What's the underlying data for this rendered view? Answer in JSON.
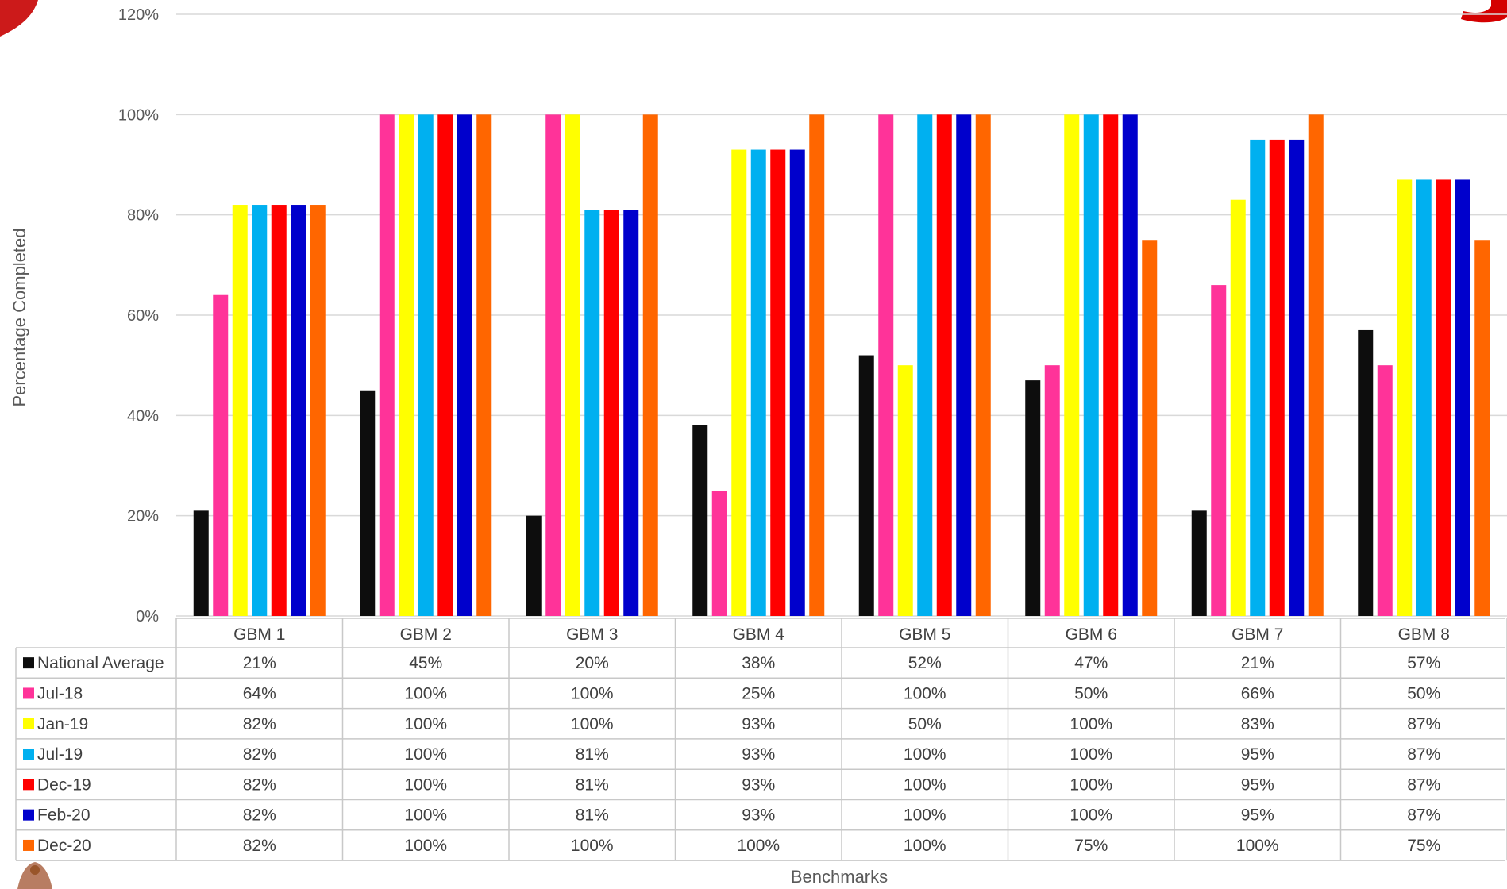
{
  "chart_data": {
    "type": "bar",
    "ylabel": "Percentage Completed",
    "xlabel": "Benchmarks",
    "ylim": [
      0,
      120
    ],
    "yticks": [
      "0%",
      "20%",
      "40%",
      "60%",
      "80%",
      "100%",
      "120%"
    ],
    "grid": "horizontal",
    "legend": "data-table",
    "categories": [
      "GBM 1",
      "GBM 2",
      "GBM 3",
      "GBM 4",
      "GBM 5",
      "GBM 6",
      "GBM 7",
      "GBM 8"
    ],
    "series": [
      {
        "name": "National Average",
        "color": "#0d0d0d",
        "values": [
          21,
          45,
          20,
          38,
          52,
          47,
          21,
          57
        ],
        "labels": [
          "21%",
          "45%",
          "20%",
          "38%",
          "52%",
          "47%",
          "21%",
          "57%"
        ]
      },
      {
        "name": "Jul-18",
        "color": "#ff3399",
        "values": [
          64,
          100,
          100,
          25,
          100,
          50,
          66,
          50
        ],
        "labels": [
          "64%",
          "100%",
          "100%",
          "25%",
          "100%",
          "50%",
          "66%",
          "50%"
        ]
      },
      {
        "name": "Jan-19",
        "color": "#ffff00",
        "values": [
          82,
          100,
          100,
          93,
          50,
          100,
          83,
          87
        ],
        "labels": [
          "82%",
          "100%",
          "100%",
          "93%",
          "50%",
          "100%",
          "83%",
          "87%"
        ]
      },
      {
        "name": "Jul-19",
        "color": "#00b0f0",
        "values": [
          82,
          100,
          81,
          93,
          100,
          100,
          95,
          87
        ],
        "labels": [
          "82%",
          "100%",
          "81%",
          "93%",
          "100%",
          "100%",
          "95%",
          "87%"
        ]
      },
      {
        "name": "Dec-19",
        "color": "#ff0000",
        "values": [
          82,
          100,
          81,
          93,
          100,
          100,
          95,
          87
        ],
        "labels": [
          "82%",
          "100%",
          "81%",
          "93%",
          "100%",
          "100%",
          "95%",
          "87%"
        ]
      },
      {
        "name": "Feb-20",
        "color": "#0000cc",
        "values": [
          82,
          100,
          81,
          93,
          100,
          100,
          95,
          87
        ],
        "labels": [
          "82%",
          "100%",
          "81%",
          "93%",
          "100%",
          "100%",
          "95%",
          "87%"
        ]
      },
      {
        "name": "Dec-20",
        "color": "#ff6600",
        "values": [
          82,
          100,
          100,
          100,
          100,
          75,
          100,
          75
        ],
        "labels": [
          "82%",
          "100%",
          "100%",
          "100%",
          "100%",
          "75%",
          "100%",
          "75%"
        ]
      }
    ]
  }
}
